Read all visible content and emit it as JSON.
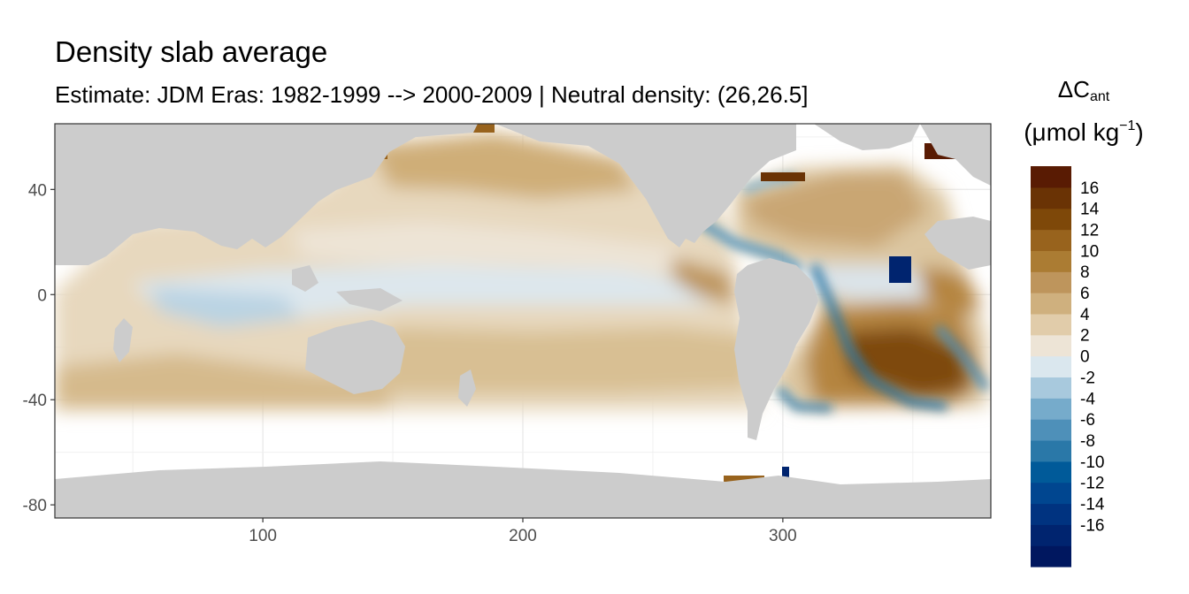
{
  "chart_data": {
    "type": "heatmap",
    "title": "Density slab average",
    "subtitle": "Estimate: JDM Eras: 1982-1999 --> 2000-2009 | Neutral density: (26,26.5]",
    "legend": {
      "title_line1": "ΔC",
      "title_sub": "ant",
      "title_line2_pre": "(μmol kg",
      "title_sup": "−1",
      "title_line2_post": ")",
      "placement": "right",
      "colors": [
        "#00175f",
        "#00246f",
        "#003380",
        "#004690",
        "#005a99",
        "#2a78a8",
        "#4e90b9",
        "#76abcb",
        "#a8c9dd",
        "#dae7ee",
        "#ede4d6",
        "#e1ccaa",
        "#cfb07e",
        "#be955c",
        "#ab7c33",
        "#98631d",
        "#7e4809",
        "#6a3305",
        "#591b03"
      ],
      "ticks": [
        16,
        14,
        12,
        10,
        8,
        6,
        4,
        2,
        0,
        -2,
        -4,
        -6,
        -8,
        -10,
        -12,
        -14,
        -16
      ]
    },
    "x_ticks": [
      100,
      200,
      300
    ],
    "y_ticks": [
      40,
      0,
      -40,
      -80
    ],
    "xlim": [
      20,
      380
    ],
    "ylim": [
      -85,
      65
    ],
    "regions": {
      "north_pacific_subpolar": 6,
      "north_pacific_subtropical": 2,
      "equatorial_band": -1,
      "south_pacific": 4,
      "indian_ocean_central": -2,
      "north_atlantic_subtropical": 6,
      "south_atlantic_center": 14,
      "atlantic_western_boundary": -10
    }
  }
}
